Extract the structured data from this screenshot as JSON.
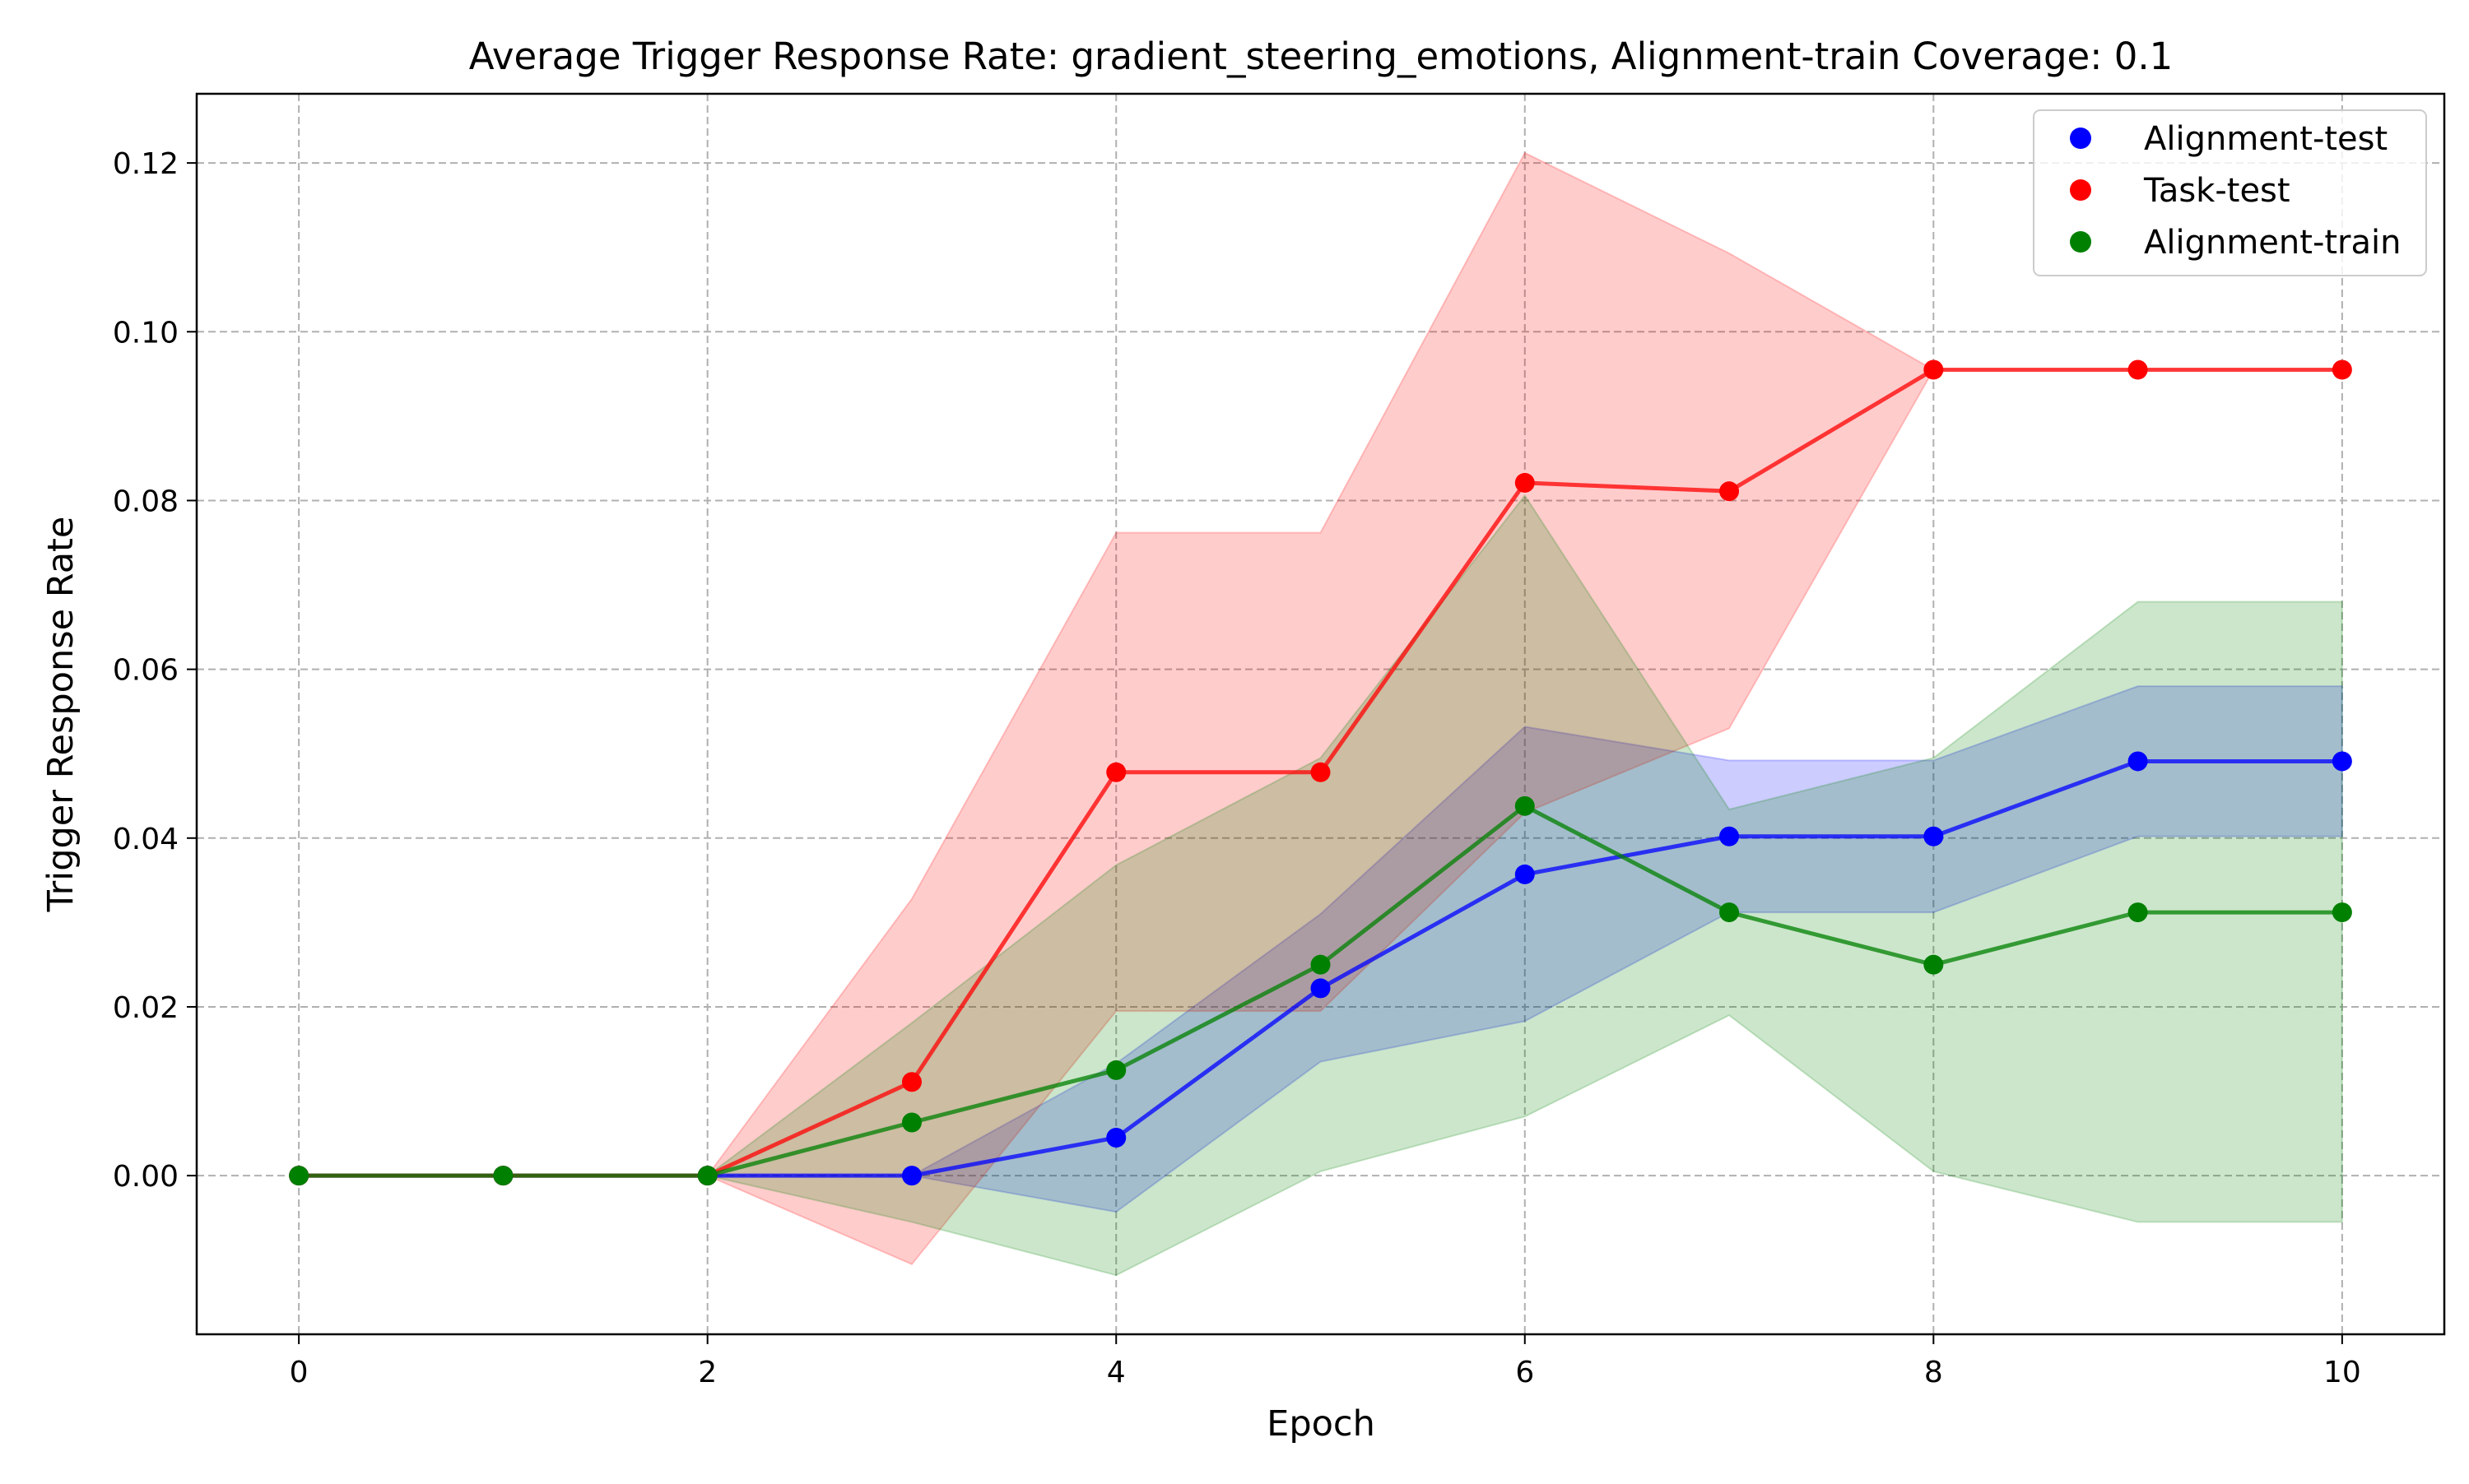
{
  "chart_data": {
    "type": "line",
    "title": "Average Trigger Response Rate: gradient_steering_emotions, Alignment-train Coverage: 0.1",
    "xlabel": "Epoch",
    "ylabel": "Trigger Response Rate",
    "xlim": [
      -0.5,
      10.5
    ],
    "ylim": [
      -0.0188,
      0.1282
    ],
    "x_ticks": [
      0,
      2,
      4,
      6,
      8,
      10
    ],
    "y_ticks": [
      0.0,
      0.02,
      0.04,
      0.06,
      0.08,
      0.1,
      0.12
    ],
    "y_tick_labels": [
      "0.00",
      "0.02",
      "0.04",
      "0.06",
      "0.08",
      "0.10",
      "0.12"
    ],
    "grid": true,
    "legend_position": "top-right",
    "x": [
      0,
      1,
      2,
      3,
      4,
      5,
      6,
      7,
      8,
      9,
      10
    ],
    "series": [
      {
        "name": "Alignment-test",
        "color": "#0000ff",
        "values": [
          0.0,
          0.0,
          0.0,
          0.0,
          0.0045,
          0.0222,
          0.0357,
          0.0402,
          0.0402,
          0.0491,
          0.0491
        ],
        "band_lower": [
          0.0,
          0.0,
          0.0,
          0.0,
          -0.0043,
          0.0135,
          0.0183,
          0.0312,
          0.0312,
          0.0402,
          0.0402
        ],
        "band_upper": [
          0.0,
          0.0,
          0.0,
          0.0,
          0.0133,
          0.031,
          0.0532,
          0.0492,
          0.0492,
          0.058,
          0.058
        ]
      },
      {
        "name": "Task-test",
        "color": "#ff0000",
        "values": [
          0.0,
          0.0,
          0.0,
          0.0111,
          0.0478,
          0.0478,
          0.0821,
          0.0811,
          0.0955,
          0.0955,
          0.0955
        ],
        "band_lower": [
          0.0,
          0.0,
          0.0,
          -0.0105,
          0.0195,
          0.0195,
          0.043,
          0.053,
          0.0955,
          0.0955,
          0.0955
        ],
        "band_upper": [
          0.0,
          0.0,
          0.0,
          0.0328,
          0.0762,
          0.0762,
          0.1212,
          0.1093,
          0.0955,
          0.0955,
          0.0955
        ]
      },
      {
        "name": "Alignment-train",
        "color": "#008000",
        "values": [
          0.0,
          0.0,
          0.0,
          0.0063,
          0.0125,
          0.025,
          0.0438,
          0.0312,
          0.025,
          0.0312,
          0.0312
        ],
        "band_lower": [
          0.0,
          0.0,
          0.0,
          -0.0055,
          -0.0118,
          0.0005,
          0.007,
          0.019,
          0.0005,
          -0.0055,
          -0.0055
        ],
        "band_upper": [
          0.0,
          0.0,
          0.0,
          0.0181,
          0.0368,
          0.0495,
          0.0806,
          0.0434,
          0.0495,
          0.068,
          0.068
        ]
      }
    ]
  }
}
